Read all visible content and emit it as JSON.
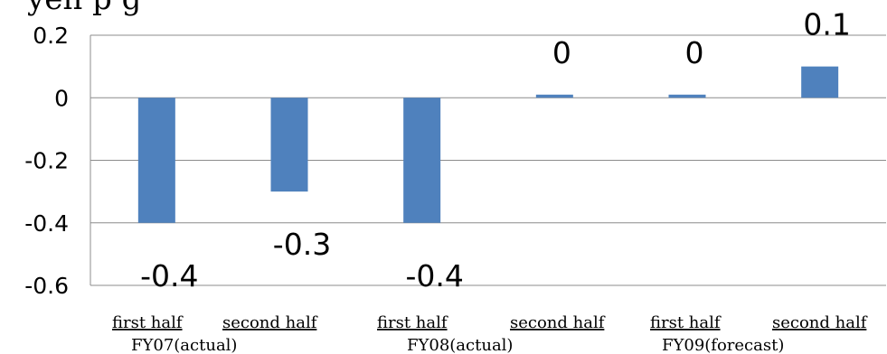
{
  "chart_data": {
    "type": "bar",
    "title_fragment": "yen            p      g",
    "categories": [
      "first half",
      "second half",
      "first half",
      "second half",
      "first half",
      "second half"
    ],
    "groups": [
      "FY07(actual)",
      "FY08(actual)",
      "FY09(forecast)"
    ],
    "values": [
      -0.4,
      -0.3,
      -0.4,
      0.01,
      0.01,
      0.1
    ],
    "data_labels": [
      "-0.4",
      "-0.3",
      "-0.4",
      "0",
      "0",
      "0.1"
    ],
    "yticks": [
      "0.2",
      "0",
      "-0.2",
      "-0.4",
      "-0.6"
    ],
    "ylim": [
      -0.6,
      0.2
    ],
    "grid": true,
    "bar_color": "#4f81bd",
    "grid_color": "#8c8c8c"
  }
}
